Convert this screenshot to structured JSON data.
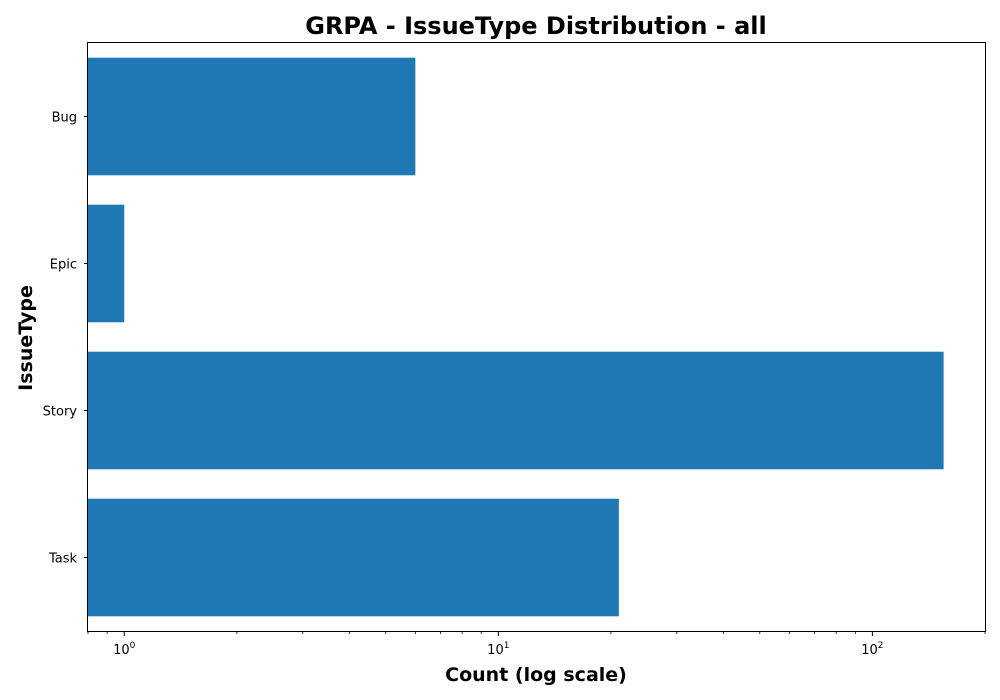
{
  "chart_data": {
    "type": "bar",
    "orientation": "horizontal",
    "title": "GRPA - IssueType Distribution - all",
    "xlabel": "Count (log scale)",
    "ylabel": "IssueType",
    "x_scale": "log",
    "xlim": [
      0.8,
      200
    ],
    "categories": [
      "Bug",
      "Epic",
      "Story",
      "Task"
    ],
    "values": [
      6,
      1,
      155,
      21
    ],
    "x_ticks": [
      {
        "base": "10",
        "exponent": "0",
        "value": 1
      },
      {
        "base": "10",
        "exponent": "1",
        "value": 10
      },
      {
        "base": "10",
        "exponent": "2",
        "value": 100
      }
    ],
    "bar_color": "#1f77b4",
    "grid": false,
    "legend": "none"
  }
}
